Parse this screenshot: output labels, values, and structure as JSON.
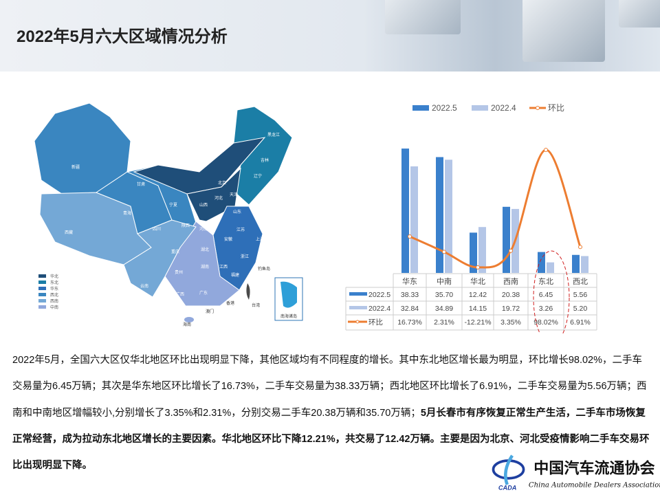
{
  "title": "2022年5月六大区域情况分析",
  "map": {
    "legend": [
      {
        "label": "华北",
        "color": "#1f4e79"
      },
      {
        "label": "东北",
        "color": "#1b7ea6"
      },
      {
        "label": "华东",
        "color": "#2e6fb8"
      },
      {
        "label": "西北",
        "color": "#3a86c0"
      },
      {
        "label": "西南",
        "color": "#74a8d6"
      },
      {
        "label": "中南",
        "color": "#91a8dc"
      }
    ],
    "provinces": [
      "新疆",
      "西藏",
      "青海",
      "甘肃",
      "内蒙古",
      "黑龙江",
      "吉林",
      "辽宁",
      "北京",
      "天津",
      "河北",
      "山西",
      "山东",
      "陕西",
      "宁夏",
      "河南",
      "江苏",
      "安徽",
      "上海",
      "浙江",
      "湖北",
      "四川",
      "重庆",
      "湖南",
      "江西",
      "福建",
      "贵州",
      "云南",
      "广西",
      "广东",
      "海南",
      "台湾",
      "香港",
      "澳门",
      "钓鱼岛",
      "南海诸岛"
    ]
  },
  "chart_data": {
    "type": "bar",
    "categories": [
      "华东",
      "中南",
      "华北",
      "西南",
      "东北",
      "西北"
    ],
    "series": [
      {
        "name": "2022.5",
        "values": [
          38.33,
          35.7,
          12.42,
          20.38,
          6.45,
          5.56
        ],
        "color": "#3a80cc"
      },
      {
        "name": "2022.4",
        "values": [
          32.84,
          34.89,
          14.15,
          19.72,
          3.26,
          5.2
        ],
        "color": "#b4c6e7"
      },
      {
        "name": "环比",
        "type": "line",
        "values": [
          16.73,
          2.31,
          -12.21,
          3.35,
          98.02,
          6.91
        ],
        "display": [
          "16.73%",
          "2.31%",
          "-12.21%",
          "3.35%",
          "98.02%",
          "6.91%"
        ],
        "color": "#ed7d31"
      }
    ],
    "table": {
      "rows": [
        {
          "label": "2022.5",
          "cells": [
            "38.33",
            "35.70",
            "12.42",
            "20.38",
            "6.45",
            "5.56"
          ]
        },
        {
          "label": "2022.4",
          "cells": [
            "32.84",
            "34.89",
            "14.15",
            "19.72",
            "3.26",
            "5.20"
          ]
        },
        {
          "label": "环比",
          "cells": [
            "16.73%",
            "2.31%",
            "-12.21%",
            "3.35%",
            "98.02%",
            "6.91%"
          ]
        }
      ]
    },
    "legend_position": "top",
    "highlight": "东北",
    "grid": false
  },
  "paragraph": {
    "normal": "2022年5月，全国六大区仅华北地区环比出现明显下降，其他区域均有不同程度的增长。其中东北地区增长最为明显，环比增长98.02%，二手车交易量为6.45万辆；其次是华东地区环比增长了16.73%，二手车交易量为38.33万辆；西北地区环比增长了6.91%，二手车交易量为5.56万辆；西南和中南地区增幅较小,分别增长了3.35%和2.31%，分别交易二手车20.38万辆和35.70万辆；",
    "bold": "5月长春市有序恢复正常生产生活，二手车市场恢复正常经营，成为拉动东北地区增长的主要因素。华北地区环比下降12.21%，共交易了12.42万辆。主要是因为北京、河北受疫情影响二手车交易环比出现明显下降。"
  },
  "logo": {
    "cn": "中国汽车流通协会",
    "en": "China Automobile Dealers Association",
    "abbr": "CADA"
  }
}
